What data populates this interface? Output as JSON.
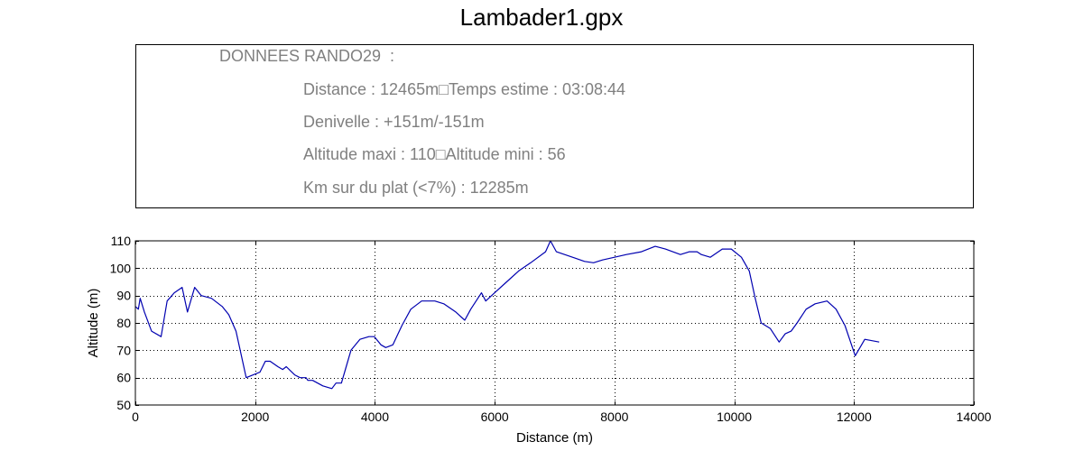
{
  "title": "Lambader1.gpx",
  "info": {
    "heading": "DONNEES RANDO29  :",
    "lines": [
      "Distance : 12465m□Temps estime : 03:08:44",
      "Denivelle : +151m/-151m",
      "Altitude maxi : 110□Altitude mini : 56",
      "Km sur du plat (<7%) : 12285m"
    ],
    "text_color": "#808080"
  },
  "chart_data": {
    "type": "line",
    "title": "",
    "xlabel": "Distance (m)",
    "ylabel": "Altitude (m)",
    "xlim": [
      0,
      14000
    ],
    "ylim": [
      50,
      110
    ],
    "xticks": [
      0,
      2000,
      4000,
      6000,
      8000,
      10000,
      12000,
      14000
    ],
    "yticks": [
      50,
      60,
      70,
      80,
      90,
      100,
      110
    ],
    "grid": true,
    "line_color": "#0000b0",
    "series": [
      {
        "x": [
          0,
          50,
          80,
          150,
          270,
          430,
          530,
          650,
          780,
          870,
          990,
          1100,
          1270,
          1450,
          1560,
          1680,
          1850,
          2080,
          2170,
          2250,
          2380,
          2460,
          2520,
          2660,
          2750,
          2850,
          2880,
          2960,
          3130,
          3280,
          3350,
          3440,
          3600,
          3750,
          3900,
          3990,
          4100,
          4180,
          4300,
          4450,
          4600,
          4780,
          5000,
          5150,
          5350,
          5500,
          5600,
          5780,
          5850,
          6000,
          6200,
          6400,
          6600,
          6850,
          6930,
          7030,
          7300,
          7500,
          7650,
          7800,
          8000,
          8200,
          8450,
          8680,
          8850,
          9100,
          9250,
          9380,
          9450,
          9600,
          9800,
          9950,
          10120,
          10250,
          10350,
          10450,
          10600,
          10750,
          10850,
          10950,
          11050,
          11200,
          11350,
          11550,
          11700,
          11850,
          12020,
          12180,
          12420
        ],
        "y": [
          86,
          85,
          89,
          84,
          77,
          75,
          88,
          91,
          93,
          84,
          93,
          90,
          89,
          86,
          83,
          77,
          60,
          62,
          66,
          66,
          64,
          63,
          64,
          61,
          60,
          60,
          59,
          59,
          57,
          56,
          58,
          58,
          70,
          74,
          75,
          75,
          72,
          71,
          72,
          79,
          85,
          88,
          88,
          87,
          84,
          81,
          85,
          91,
          88,
          91,
          95,
          99,
          102,
          106,
          110,
          106,
          104,
          102.5,
          102,
          103,
          104,
          105,
          106,
          108,
          107,
          105,
          106,
          106,
          105,
          104,
          107,
          107,
          104,
          99,
          89,
          80,
          78,
          73,
          76,
          77,
          80,
          85,
          87,
          88,
          85,
          79,
          68,
          74,
          73
        ]
      }
    ]
  }
}
